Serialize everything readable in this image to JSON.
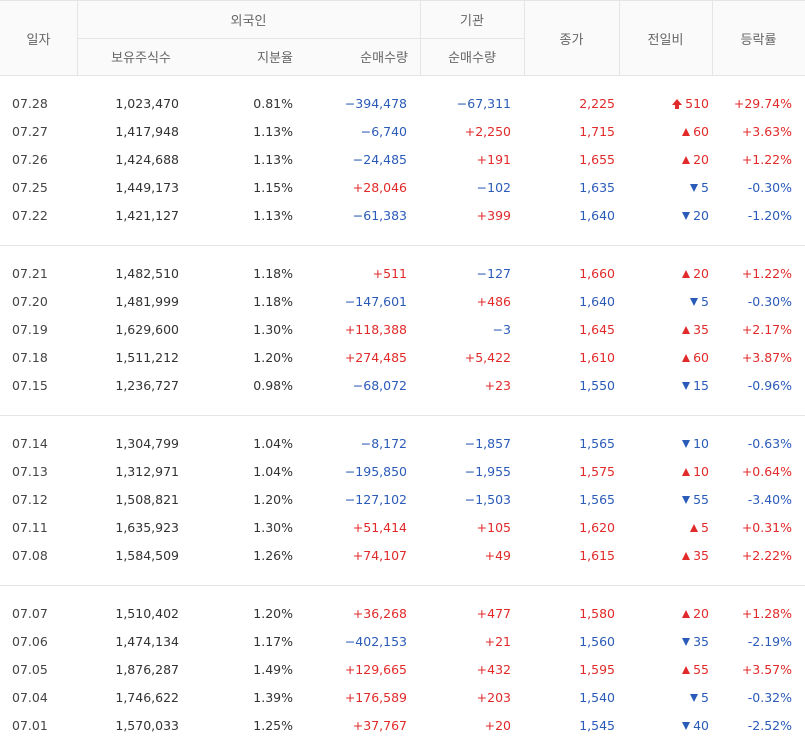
{
  "header": {
    "date": "일자",
    "foreign": "외국인",
    "foreign_hold": "보유주식수",
    "foreign_ratio": "지분율",
    "foreign_net": "순매수량",
    "institution": "기관",
    "institution_net": "순매수량",
    "close": "종가",
    "diff": "전일비",
    "rate": "등락률"
  },
  "colors": {
    "up": "#e12a2a",
    "down": "#2b5bb8",
    "border": "#e5e5e5"
  },
  "groups": [
    {
      "rows": [
        {
          "date": "07.28",
          "hold": "1,023,470",
          "ratio": "0.81%",
          "fnet": "−394,478",
          "fdir": "down",
          "inst": "−67,311",
          "idir": "down",
          "close": "2,225",
          "cdir": "up",
          "diff": "510",
          "ddir": "uplimit",
          "rate": "+29.74%",
          "rdir": "up"
        },
        {
          "date": "07.27",
          "hold": "1,417,948",
          "ratio": "1.13%",
          "fnet": "−6,740",
          "fdir": "down",
          "inst": "+2,250",
          "idir": "up",
          "close": "1,715",
          "cdir": "up",
          "diff": "60",
          "ddir": "up",
          "rate": "+3.63%",
          "rdir": "up"
        },
        {
          "date": "07.26",
          "hold": "1,424,688",
          "ratio": "1.13%",
          "fnet": "−24,485",
          "fdir": "down",
          "inst": "+191",
          "idir": "up",
          "close": "1,655",
          "cdir": "up",
          "diff": "20",
          "ddir": "up",
          "rate": "+1.22%",
          "rdir": "up"
        },
        {
          "date": "07.25",
          "hold": "1,449,173",
          "ratio": "1.15%",
          "fnet": "+28,046",
          "fdir": "up",
          "inst": "−102",
          "idir": "down",
          "close": "1,635",
          "cdir": "down",
          "diff": "5",
          "ddir": "down",
          "rate": "-0.30%",
          "rdir": "down"
        },
        {
          "date": "07.22",
          "hold": "1,421,127",
          "ratio": "1.13%",
          "fnet": "−61,383",
          "fdir": "down",
          "inst": "+399",
          "idir": "up",
          "close": "1,640",
          "cdir": "down",
          "diff": "20",
          "ddir": "down",
          "rate": "-1.20%",
          "rdir": "down"
        }
      ]
    },
    {
      "rows": [
        {
          "date": "07.21",
          "hold": "1,482,510",
          "ratio": "1.18%",
          "fnet": "+511",
          "fdir": "up",
          "inst": "−127",
          "idir": "down",
          "close": "1,660",
          "cdir": "up",
          "diff": "20",
          "ddir": "up",
          "rate": "+1.22%",
          "rdir": "up"
        },
        {
          "date": "07.20",
          "hold": "1,481,999",
          "ratio": "1.18%",
          "fnet": "−147,601",
          "fdir": "down",
          "inst": "+486",
          "idir": "up",
          "close": "1,640",
          "cdir": "down",
          "diff": "5",
          "ddir": "down",
          "rate": "-0.30%",
          "rdir": "down"
        },
        {
          "date": "07.19",
          "hold": "1,629,600",
          "ratio": "1.30%",
          "fnet": "+118,388",
          "fdir": "up",
          "inst": "−3",
          "idir": "down",
          "close": "1,645",
          "cdir": "up",
          "diff": "35",
          "ddir": "up",
          "rate": "+2.17%",
          "rdir": "up"
        },
        {
          "date": "07.18",
          "hold": "1,511,212",
          "ratio": "1.20%",
          "fnet": "+274,485",
          "fdir": "up",
          "inst": "+5,422",
          "idir": "up",
          "close": "1,610",
          "cdir": "up",
          "diff": "60",
          "ddir": "up",
          "rate": "+3.87%",
          "rdir": "up"
        },
        {
          "date": "07.15",
          "hold": "1,236,727",
          "ratio": "0.98%",
          "fnet": "−68,072",
          "fdir": "down",
          "inst": "+23",
          "idir": "up",
          "close": "1,550",
          "cdir": "down",
          "diff": "15",
          "ddir": "down",
          "rate": "-0.96%",
          "rdir": "down"
        }
      ]
    },
    {
      "rows": [
        {
          "date": "07.14",
          "hold": "1,304,799",
          "ratio": "1.04%",
          "fnet": "−8,172",
          "fdir": "down",
          "inst": "−1,857",
          "idir": "down",
          "close": "1,565",
          "cdir": "down",
          "diff": "10",
          "ddir": "down",
          "rate": "-0.63%",
          "rdir": "down"
        },
        {
          "date": "07.13",
          "hold": "1,312,971",
          "ratio": "1.04%",
          "fnet": "−195,850",
          "fdir": "down",
          "inst": "−1,955",
          "idir": "down",
          "close": "1,575",
          "cdir": "up",
          "diff": "10",
          "ddir": "up",
          "rate": "+0.64%",
          "rdir": "up"
        },
        {
          "date": "07.12",
          "hold": "1,508,821",
          "ratio": "1.20%",
          "fnet": "−127,102",
          "fdir": "down",
          "inst": "−1,503",
          "idir": "down",
          "close": "1,565",
          "cdir": "down",
          "diff": "55",
          "ddir": "down",
          "rate": "-3.40%",
          "rdir": "down"
        },
        {
          "date": "07.11",
          "hold": "1,635,923",
          "ratio": "1.30%",
          "fnet": "+51,414",
          "fdir": "up",
          "inst": "+105",
          "idir": "up",
          "close": "1,620",
          "cdir": "up",
          "diff": "5",
          "ddir": "up",
          "rate": "+0.31%",
          "rdir": "up"
        },
        {
          "date": "07.08",
          "hold": "1,584,509",
          "ratio": "1.26%",
          "fnet": "+74,107",
          "fdir": "up",
          "inst": "+49",
          "idir": "up",
          "close": "1,615",
          "cdir": "up",
          "diff": "35",
          "ddir": "up",
          "rate": "+2.22%",
          "rdir": "up"
        }
      ]
    },
    {
      "rows": [
        {
          "date": "07.07",
          "hold": "1,510,402",
          "ratio": "1.20%",
          "fnet": "+36,268",
          "fdir": "up",
          "inst": "+477",
          "idir": "up",
          "close": "1,580",
          "cdir": "up",
          "diff": "20",
          "ddir": "up",
          "rate": "+1.28%",
          "rdir": "up"
        },
        {
          "date": "07.06",
          "hold": "1,474,134",
          "ratio": "1.17%",
          "fnet": "−402,153",
          "fdir": "down",
          "inst": "+21",
          "idir": "up",
          "close": "1,560",
          "cdir": "down",
          "diff": "35",
          "ddir": "down",
          "rate": "-2.19%",
          "rdir": "down"
        },
        {
          "date": "07.05",
          "hold": "1,876,287",
          "ratio": "1.49%",
          "fnet": "+129,665",
          "fdir": "up",
          "inst": "+432",
          "idir": "up",
          "close": "1,595",
          "cdir": "up",
          "diff": "55",
          "ddir": "up",
          "rate": "+3.57%",
          "rdir": "up"
        },
        {
          "date": "07.04",
          "hold": "1,746,622",
          "ratio": "1.39%",
          "fnet": "+176,589",
          "fdir": "up",
          "inst": "+203",
          "idir": "up",
          "close": "1,540",
          "cdir": "down",
          "diff": "5",
          "ddir": "down",
          "rate": "-0.32%",
          "rdir": "down"
        },
        {
          "date": "07.01",
          "hold": "1,570,033",
          "ratio": "1.25%",
          "fnet": "+37,767",
          "fdir": "up",
          "inst": "+20",
          "idir": "up",
          "close": "1,545",
          "cdir": "down",
          "diff": "40",
          "ddir": "down",
          "rate": "-2.52%",
          "rdir": "down"
        }
      ]
    }
  ]
}
